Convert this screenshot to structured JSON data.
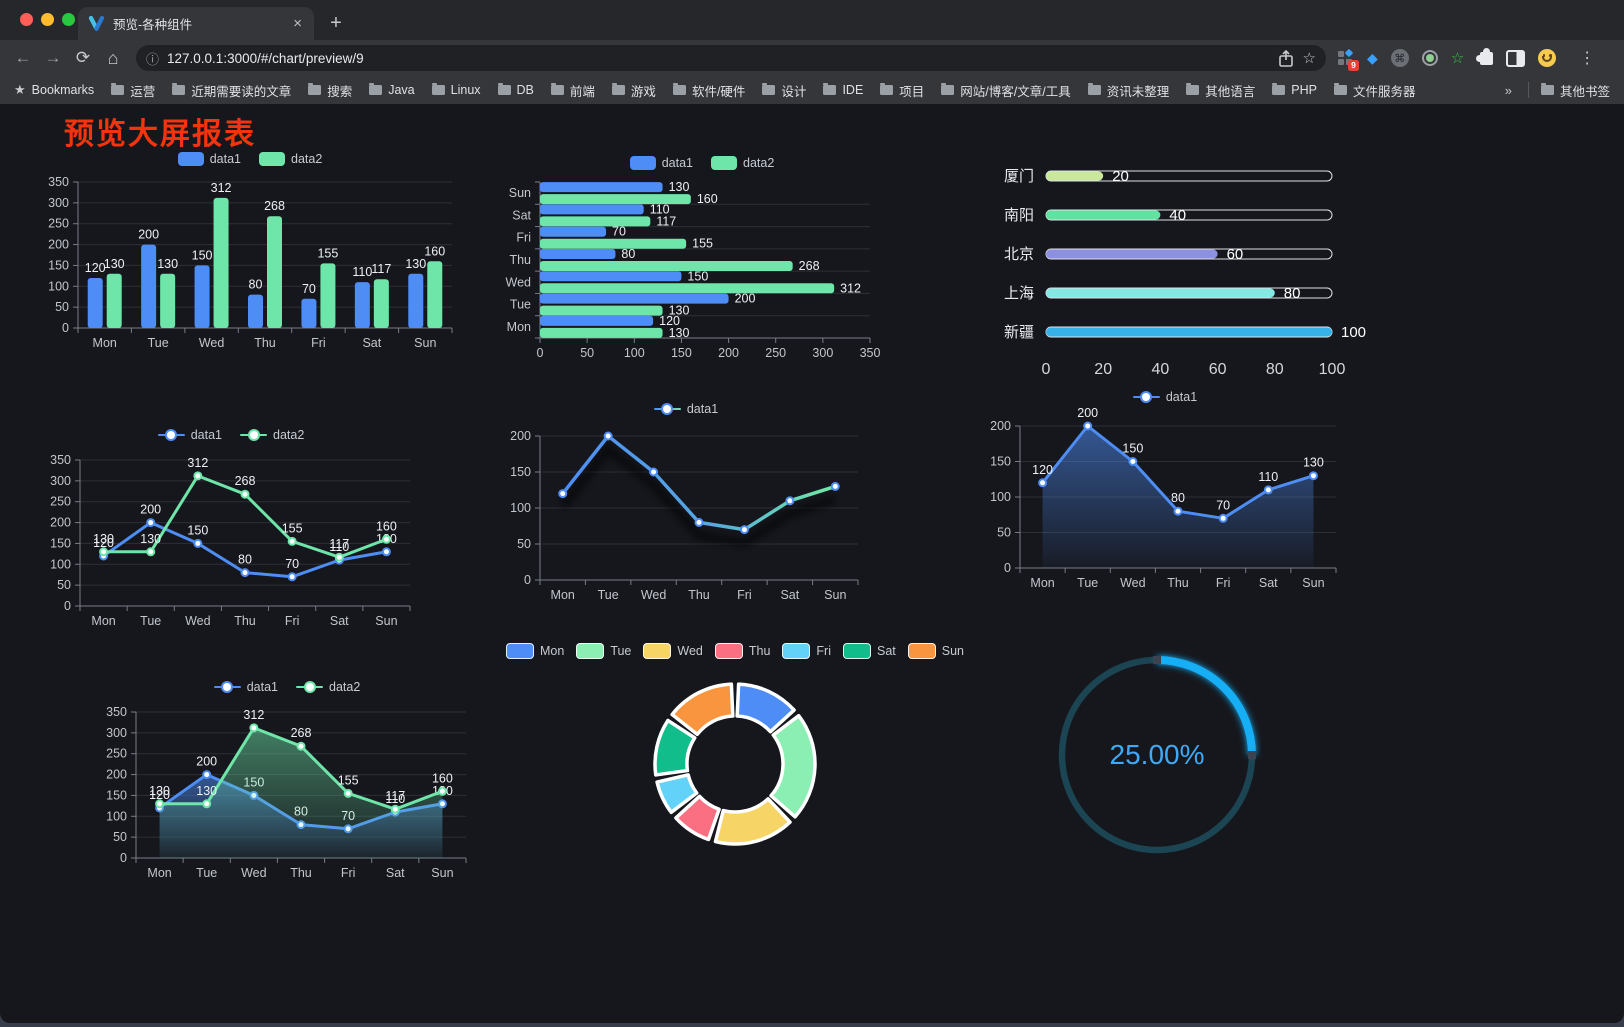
{
  "browser": {
    "tab": {
      "title": "预览-各种组件"
    },
    "url": "127.0.0.1:3000/#/chart/preview/9",
    "bookmarks_label": "Bookmarks",
    "bookmarks": [
      "运营",
      "近期需要读的文章",
      "搜索",
      "Java",
      "Linux",
      "DB",
      "前端",
      "游戏",
      "软件/硬件",
      "设计",
      "IDE",
      "项目",
      "网站/博客/文章/工具",
      "资讯未整理",
      "其他语言",
      "PHP",
      "文件服务器"
    ],
    "other_bookmarks": "其他书签",
    "extension_badge": "9",
    "glyphs": {
      "back": "←",
      "forward": "→",
      "reload": "⟳",
      "home": "⌂",
      "info": "ⓘ",
      "favorite_star": "☆",
      "bookmarks_star": "★",
      "menu": "⋮",
      "overflow": "»",
      "close": "×",
      "new_tab": "+",
      "command": "⌘",
      "gem": "◆"
    }
  },
  "page": {
    "title": "预览大屏报表",
    "title_color": "#f5330d",
    "background": "#16171d"
  },
  "palette": {
    "blue": "#4d8df5",
    "green": "#6ee5a9"
  },
  "chart_data": [
    {
      "id": "bar-vertical",
      "type": "bar",
      "legend": [
        "data1",
        "data2"
      ],
      "categories": [
        "Mon",
        "Tue",
        "Wed",
        "Thu",
        "Fri",
        "Sat",
        "Sun"
      ],
      "series": [
        {
          "name": "data1",
          "color": "#4d8df5",
          "values": [
            120,
            200,
            150,
            80,
            70,
            110,
            130
          ]
        },
        {
          "name": "data2",
          "color": "#6ee5a9",
          "values": [
            130,
            130,
            312,
            268,
            155,
            117,
            160
          ]
        }
      ],
      "ylim": [
        0,
        350
      ],
      "ytick_step": 50,
      "grid": true,
      "legend_position": "top"
    },
    {
      "id": "bar-horizontal",
      "type": "bar",
      "orientation": "horizontal",
      "legend": [
        "data1",
        "data2"
      ],
      "categories": [
        "Mon",
        "Tue",
        "Wed",
        "Thu",
        "Fri",
        "Sat",
        "Sun"
      ],
      "series": [
        {
          "name": "data1",
          "color": "#4d8df5",
          "values": [
            120,
            200,
            150,
            80,
            70,
            110,
            130
          ]
        },
        {
          "name": "data2",
          "color": "#6ee5a9",
          "values": [
            130,
            130,
            312,
            268,
            155,
            117,
            160
          ]
        }
      ],
      "xlim": [
        0,
        350
      ],
      "xtick_step": 50,
      "grid": true,
      "legend_position": "top"
    },
    {
      "id": "capsule-bars",
      "type": "bar",
      "orientation": "horizontal",
      "categories": [
        "厦门",
        "南阳",
        "北京",
        "上海",
        "新疆"
      ],
      "values": [
        20,
        40,
        60,
        80,
        100
      ],
      "colors": [
        "#c9e89b",
        "#5fe3a1",
        "#8d90e0",
        "#86e8e3",
        "#37b2e8"
      ],
      "xlim": [
        0,
        100
      ],
      "xticks": [
        0,
        20,
        40,
        60,
        80,
        100
      ]
    },
    {
      "id": "line-two-series",
      "type": "line",
      "legend": [
        "data1",
        "data2"
      ],
      "categories": [
        "Mon",
        "Tue",
        "Wed",
        "Thu",
        "Fri",
        "Sat",
        "Sun"
      ],
      "series": [
        {
          "name": "data1",
          "color": "#4d8df5",
          "values": [
            120,
            200,
            150,
            80,
            70,
            110,
            130
          ]
        },
        {
          "name": "data2",
          "color": "#6ee5a9",
          "values": [
            130,
            130,
            312,
            268,
            155,
            117,
            160
          ]
        }
      ],
      "ylim": [
        0,
        350
      ],
      "ytick_step": 50,
      "grid": true,
      "legend_position": "top"
    },
    {
      "id": "line-gradient",
      "type": "line",
      "legend": [
        "data1"
      ],
      "categories": [
        "Mon",
        "Tue",
        "Wed",
        "Thu",
        "Fri",
        "Sat",
        "Sun"
      ],
      "series": [
        {
          "name": "data1",
          "color_start": "#4d8df5",
          "color_end": "#6ee5a9",
          "values": [
            120,
            200,
            150,
            80,
            70,
            110,
            130
          ]
        }
      ],
      "ylim": [
        0,
        200
      ],
      "ytick_step": 50,
      "grid": true,
      "legend_position": "top",
      "shadow": true
    },
    {
      "id": "area-single",
      "type": "area",
      "legend": [
        "data1"
      ],
      "categories": [
        "Mon",
        "Tue",
        "Wed",
        "Thu",
        "Fri",
        "Sat",
        "Sun"
      ],
      "series": [
        {
          "name": "data1",
          "color": "#4d8df5",
          "values": [
            120,
            200,
            150,
            80,
            70,
            110,
            130
          ]
        }
      ],
      "ylim": [
        0,
        200
      ],
      "ytick_step": 50,
      "grid": true,
      "legend_position": "top"
    },
    {
      "id": "area-two-series",
      "type": "area",
      "legend": [
        "data1",
        "data2"
      ],
      "categories": [
        "Mon",
        "Tue",
        "Wed",
        "Thu",
        "Fri",
        "Sat",
        "Sun"
      ],
      "series": [
        {
          "name": "data1",
          "color": "#4d8df5",
          "values": [
            120,
            200,
            150,
            80,
            70,
            110,
            130
          ]
        },
        {
          "name": "data2",
          "color": "#6ee5a9",
          "values": [
            130,
            130,
            312,
            268,
            155,
            117,
            160
          ]
        }
      ],
      "ylim": [
        0,
        350
      ],
      "ytick_step": 50,
      "grid": true,
      "legend_position": "top"
    },
    {
      "id": "donut",
      "type": "pie",
      "legend_position": "top",
      "labels": [
        "Mon",
        "Tue",
        "Wed",
        "Thu",
        "Fri",
        "Sat",
        "Sun"
      ],
      "values": [
        120,
        200,
        150,
        80,
        70,
        110,
        130
      ],
      "colors": [
        "#4d8df5",
        "#8beeb2",
        "#f6d566",
        "#fa7082",
        "#63d2f9",
        "#12bd8c",
        "#f9953e"
      ]
    },
    {
      "id": "progress-gauge",
      "type": "gauge",
      "value": 25,
      "label": "25.00%",
      "color": "#14aef5",
      "track_color": "#1c4553",
      "text_color": "#3fa9f5"
    }
  ]
}
